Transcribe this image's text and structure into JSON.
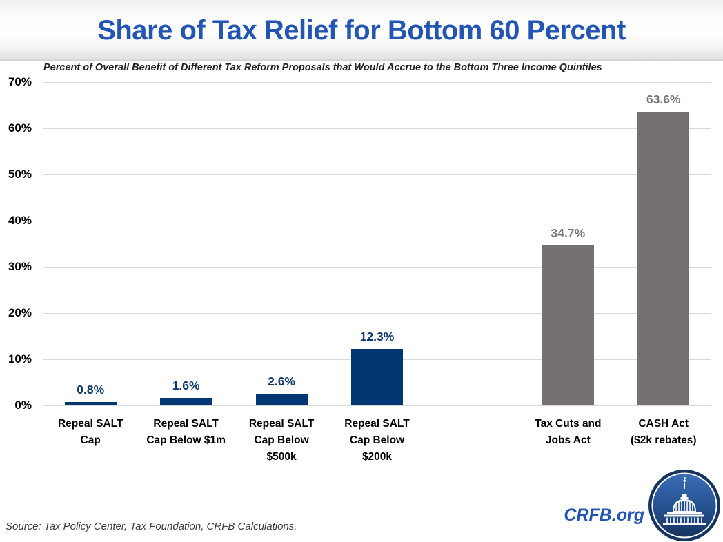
{
  "header": {
    "title": "Share of Tax Relief for Bottom 60 Percent"
  },
  "chart_data": {
    "type": "bar",
    "title": "Share of Tax Relief for Bottom 60 Percent",
    "subtitle": "Percent of Overall Benefit of Different Tax Reform Proposals that Would Accrue to the Bottom Three Income Quintiles",
    "xlabel": "",
    "ylabel": "",
    "ylim": [
      0,
      70
    ],
    "yticks": [
      0,
      10,
      20,
      30,
      40,
      50,
      60,
      70
    ],
    "ytick_suffix": "%",
    "grid": true,
    "legend": "none",
    "categories": [
      "Repeal SALT Cap",
      "Repeal SALT Cap Below $1m",
      "Repeal SALT Cap Below $500k",
      "Repeal SALT Cap Below $200k",
      "Tax Cuts and Jobs Act",
      "CASH Act ($2k rebates)"
    ],
    "values": [
      0.8,
      1.6,
      2.6,
      12.3,
      34.7,
      63.6
    ],
    "bars": [
      {
        "category": "Repeal SALT Cap",
        "label_lines": [
          "Repeal SALT",
          "Cap"
        ],
        "value": 0.8,
        "display_value": "0.8%",
        "color_key": "navy",
        "slot": 0
      },
      {
        "category": "Repeal SALT Cap Below $1m",
        "label_lines": [
          "Repeal SALT",
          "Cap Below $1m"
        ],
        "value": 1.6,
        "display_value": "1.6%",
        "color_key": "navy",
        "slot": 1
      },
      {
        "category": "Repeal SALT Cap Below $500k",
        "label_lines": [
          "Repeal SALT",
          "Cap Below",
          "$500k"
        ],
        "value": 2.6,
        "display_value": "2.6%",
        "color_key": "navy",
        "slot": 2
      },
      {
        "category": "Repeal SALT Cap Below $200k",
        "label_lines": [
          "Repeal SALT",
          "Cap Below",
          "$200k"
        ],
        "value": 12.3,
        "display_value": "12.3%",
        "color_key": "navy",
        "slot": 3
      },
      {
        "category": "Tax Cuts and Jobs Act",
        "label_lines": [
          "Tax Cuts and",
          "Jobs Act"
        ],
        "value": 34.7,
        "display_value": "34.7%",
        "color_key": "gray",
        "slot": 5
      },
      {
        "category": "CASH Act ($2k rebates)",
        "label_lines": [
          "CASH Act",
          "($2k rebates)"
        ],
        "value": 63.6,
        "display_value": "63.6%",
        "color_key": "gray",
        "slot": 6
      }
    ],
    "colors": {
      "navy": "#003671",
      "gray": "#767171",
      "navy_label": "#0e3a6d",
      "gray_label": "#7a7575",
      "gridline": "#d9d9d9",
      "title_blue": "#2356b4"
    }
  },
  "footer": {
    "source": "Source: Tax Policy Center, Tax Foundation, CRFB Calculations.",
    "brand": "CRFB.org"
  },
  "logo": {
    "name": "crfb-capitol-logo"
  }
}
